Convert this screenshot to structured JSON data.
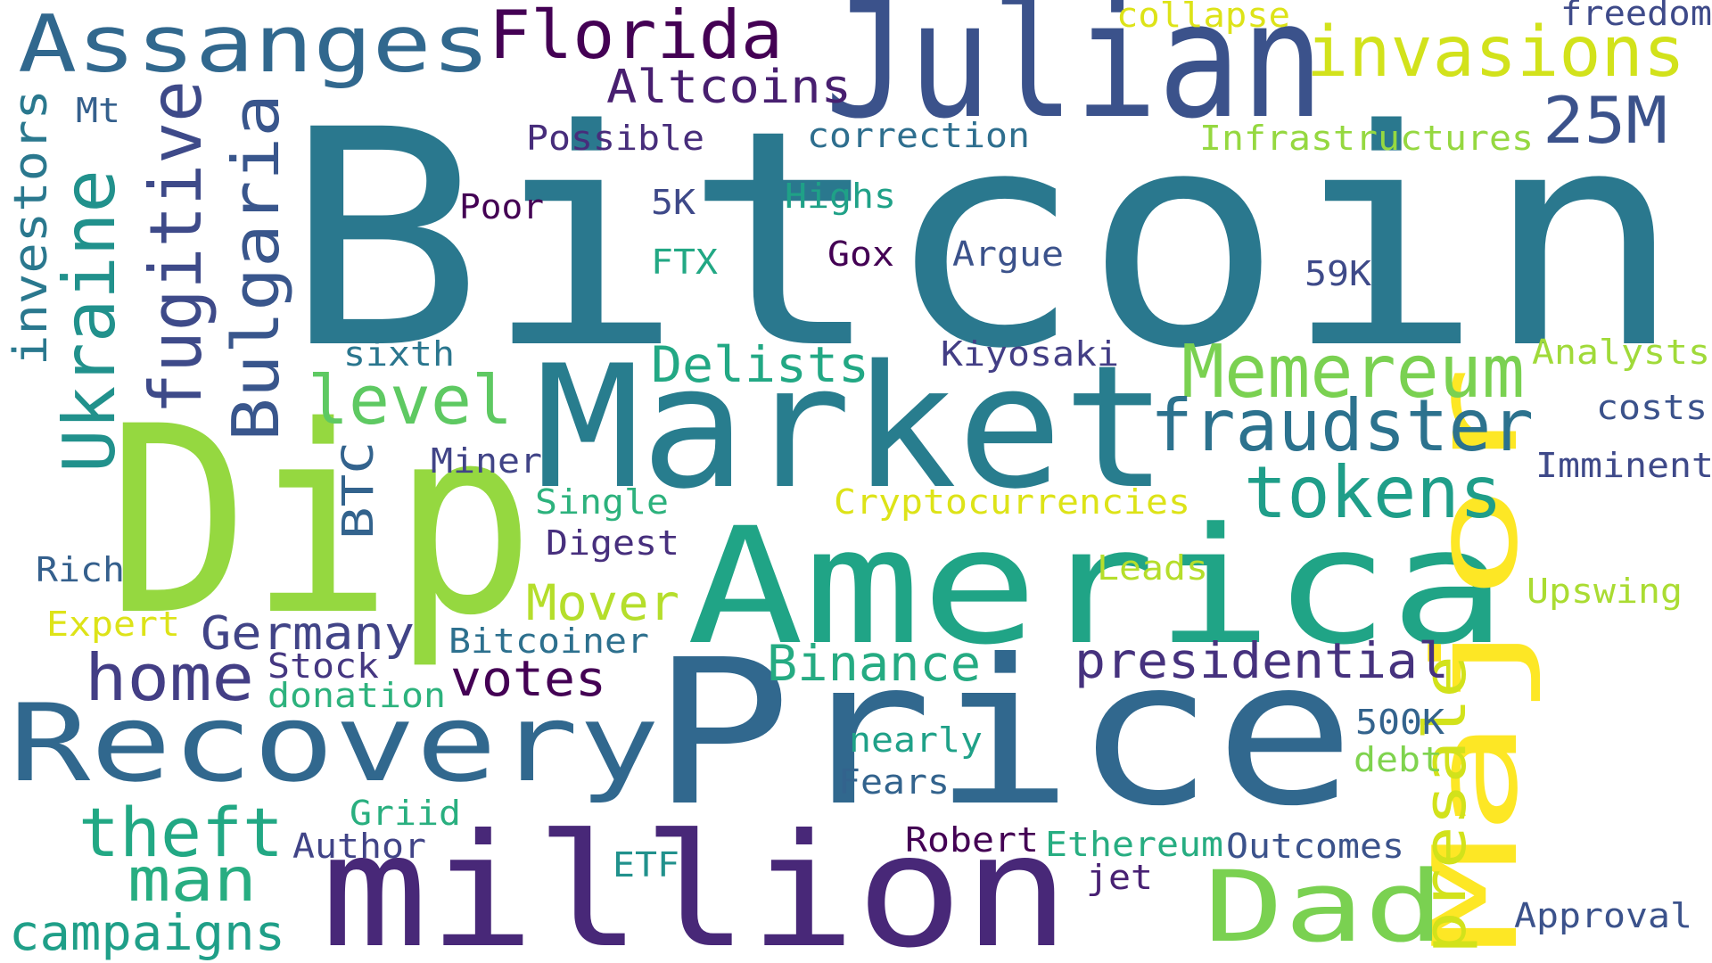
{
  "words": [
    {
      "text": "Bitcoin",
      "color": "#2a788e"
    },
    {
      "text": "Dip",
      "color": "#95d840"
    },
    {
      "text": "Market",
      "color": "#287d8e"
    },
    {
      "text": "Price",
      "color": "#31688e"
    },
    {
      "text": "America",
      "color": "#20a486"
    },
    {
      "text": "Julian",
      "color": "#3b528b"
    },
    {
      "text": "million",
      "color": "#482878"
    },
    {
      "text": "Major",
      "color": "#fde725"
    },
    {
      "text": "Recovery",
      "color": "#31688e"
    },
    {
      "text": "Dad",
      "color": "#7ad151"
    },
    {
      "text": "Assanges",
      "color": "#31688e"
    },
    {
      "text": "Florida",
      "color": "#440154"
    },
    {
      "text": "invasions",
      "color": "#d2e21b"
    },
    {
      "text": "25M",
      "color": "#3b528b"
    },
    {
      "text": "Altcoins",
      "color": "#481f70"
    },
    {
      "text": "fugitive",
      "color": "#3e4a89"
    },
    {
      "text": "Bulgaria",
      "color": "#39568c"
    },
    {
      "text": "Ukraine",
      "color": "#21918c"
    },
    {
      "text": "investors",
      "color": "#2a788e"
    },
    {
      "text": "Memereum",
      "color": "#7ad151"
    },
    {
      "text": "fraudster",
      "color": "#2c728e"
    },
    {
      "text": "tokens",
      "color": "#1f9e89"
    },
    {
      "text": "level",
      "color": "#5ec962"
    },
    {
      "text": "presale",
      "color": "#d2e21b"
    },
    {
      "text": "Delists",
      "color": "#22a884"
    },
    {
      "text": "home",
      "color": "#433e85"
    },
    {
      "text": "Germany",
      "color": "#414487"
    },
    {
      "text": "presidential",
      "color": "#46327e"
    },
    {
      "text": "Binance",
      "color": "#25ab82"
    },
    {
      "text": "theft",
      "color": "#22a884"
    },
    {
      "text": "votes",
      "color": "#440154"
    },
    {
      "text": "Mover",
      "color": "#b5de2b"
    },
    {
      "text": "man",
      "color": "#27ad81"
    },
    {
      "text": "campaigns",
      "color": "#1f9f88"
    },
    {
      "text": "BTC",
      "color": "#33638d"
    },
    {
      "text": "Infrastructures",
      "color": "#95d840"
    },
    {
      "text": "Cryptocurrencies",
      "color": "#dde318"
    },
    {
      "text": "Analysts",
      "color": "#a0da39"
    },
    {
      "text": "costs",
      "color": "#3b528b"
    },
    {
      "text": "Imminent",
      "color": "#3e4989"
    },
    {
      "text": "Upswing",
      "color": "#aadc32"
    },
    {
      "text": "collapse",
      "color": "#dde318"
    },
    {
      "text": "freedom",
      "color": "#3e4a89"
    },
    {
      "text": "Possible",
      "color": "#472d7b"
    },
    {
      "text": "correction",
      "color": "#2e6e8e"
    },
    {
      "text": "Mt",
      "color": "#35608d"
    },
    {
      "text": "Highs",
      "color": "#1fa187"
    },
    {
      "text": "5K",
      "color": "#3e4989"
    },
    {
      "text": "Poor",
      "color": "#440154"
    },
    {
      "text": "FTX",
      "color": "#22a884"
    },
    {
      "text": "Gox",
      "color": "#440154"
    },
    {
      "text": "Argue",
      "color": "#3b528b"
    },
    {
      "text": "59K",
      "color": "#3e4a89"
    },
    {
      "text": "sixth",
      "color": "#2a768e"
    },
    {
      "text": "Kiyosaki",
      "color": "#433e85"
    },
    {
      "text": "Miner",
      "color": "#414487"
    },
    {
      "text": "Single",
      "color": "#2db27d"
    },
    {
      "text": "Digest",
      "color": "#472f7d"
    },
    {
      "text": "Leads",
      "color": "#b5de2b"
    },
    {
      "text": "Rich",
      "color": "#35608d"
    },
    {
      "text": "Expert",
      "color": "#dde318"
    },
    {
      "text": "Bitcoiner",
      "color": "#2d708e"
    },
    {
      "text": "Stock",
      "color": "#453781"
    },
    {
      "text": "donation",
      "color": "#2db27d"
    },
    {
      "text": "500K",
      "color": "#33638d"
    },
    {
      "text": "debt",
      "color": "#7fd34e"
    },
    {
      "text": "nearly",
      "color": "#1fa188"
    },
    {
      "text": "Fears",
      "color": "#33638d"
    },
    {
      "text": "Griid",
      "color": "#29af7f"
    },
    {
      "text": "Author",
      "color": "#414487"
    },
    {
      "text": "Robert",
      "color": "#440154"
    },
    {
      "text": "Ethereum",
      "color": "#27ad81"
    },
    {
      "text": "Outcomes",
      "color": "#3b528b"
    },
    {
      "text": "ETF",
      "color": "#21918c"
    },
    {
      "text": "jet",
      "color": "#482173"
    },
    {
      "text": "Approval",
      "color": "#3b528b"
    }
  ]
}
